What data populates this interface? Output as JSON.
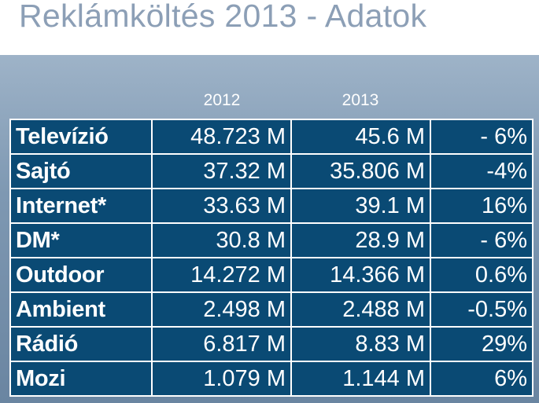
{
  "title": "Reklámköltés 2013 - Adatok",
  "columns": {
    "y2012": "2012",
    "y2013": "2013"
  },
  "rows": [
    {
      "label": "Televízió",
      "v2012": "48.723 M",
      "v2013": "45.6 M",
      "change": "- 6%",
      "negative": true
    },
    {
      "label": "Sajtó",
      "v2012": "37.32 M",
      "v2013": "35.806 M",
      "change": "-4%",
      "negative": true
    },
    {
      "label": "Internet*",
      "v2012": "33.63 M",
      "v2013": "39.1 M",
      "change": "16%",
      "negative": false
    },
    {
      "label": "DM*",
      "v2012": "30.8 M",
      "v2013": "28.9 M",
      "change": "- 6%",
      "negative": true
    },
    {
      "label": "Outdoor",
      "v2012": "14.272 M",
      "v2013": "14.366 M",
      "change": "0.6%",
      "negative": false
    },
    {
      "label": "Ambient",
      "v2012": "2.498 M",
      "v2013": "2.488 M",
      "change": "-0.5%",
      "negative": true
    },
    {
      "label": "Rádió",
      "v2012": "6.817 M",
      "v2013": "8.83 M",
      "change": "29%",
      "negative": false
    },
    {
      "label": "Mozi",
      "v2012": "1.079 M",
      "v2013": "1.144 M",
      "change": "6%",
      "negative": false
    }
  ],
  "colors": {
    "cell_bg": "#0a4a74",
    "negative": "#e0302b",
    "title": "#8c9fb6"
  }
}
